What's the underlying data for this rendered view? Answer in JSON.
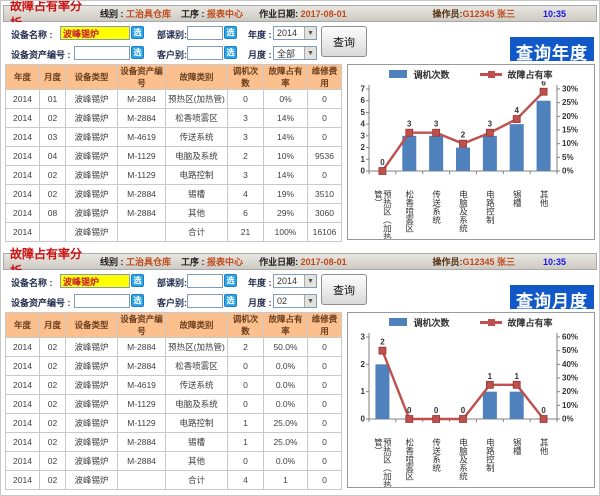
{
  "colors": {
    "bar": "#4f81bd",
    "line": "#c0504d",
    "table_header_bg": "#fbc08d",
    "mode_bg": "#1159c8",
    "pick_btn": "#2ba5e6",
    "highlight": "#ffff00",
    "title_red": "#cc1111",
    "time_blue": "#1515ee"
  },
  "panels": [
    {
      "titlebar": {
        "title": "故障占有率分析",
        "line_label": "线别 :",
        "line_value": "工治具仓库",
        "process_label": "工序 :",
        "process_value": "报表中心",
        "date_label": "作业日期:",
        "date_value": "2017-08-01",
        "operator_label": "操作员:",
        "operator_value": "G12345 张三",
        "time": "10:35"
      },
      "filters": {
        "device_label": "设备名称 :",
        "device_value": "波峰锡炉",
        "asset_label": "设备资产编号 :",
        "asset_value": "",
        "dept_label": "部课别:",
        "dept_value": "",
        "customer_label": "客户别:",
        "customer_value": "",
        "year_label": "年度 :",
        "year_value": "2014",
        "month_label": "月度 :",
        "month_value": "全部",
        "pick": "选",
        "query": "查询",
        "mode": "查询年度"
      },
      "table": {
        "columns": [
          "年度",
          "月度",
          "设备类型",
          "设备资产编号",
          "故障类别",
          "调机次数",
          "故障占有率",
          "维修费用"
        ],
        "rows": [
          [
            "2014",
            "01",
            "波峰锡炉",
            "M-2884",
            "预热区(加热管)",
            "0",
            "0%",
            "0"
          ],
          [
            "2014",
            "02",
            "波峰锡炉",
            "M-2884",
            "松香喷雾区",
            "3",
            "14%",
            "0"
          ],
          [
            "2014",
            "03",
            "波峰锡炉",
            "M-4619",
            "传送系统",
            "3",
            "14%",
            "0"
          ],
          [
            "2014",
            "04",
            "波峰锡炉",
            "M-1129",
            "电脑及系统",
            "2",
            "10%",
            "9536"
          ],
          [
            "2014",
            "02",
            "波峰锡炉",
            "M-1129",
            "电路控制",
            "3",
            "14%",
            "0"
          ],
          [
            "2014",
            "02",
            "波峰锡炉",
            "M-2884",
            "锡槽",
            "4",
            "19%",
            "3510"
          ],
          [
            "2014",
            "08",
            "波峰锡炉",
            "M-2884",
            "其他",
            "6",
            "29%",
            "3060"
          ],
          [
            "2014",
            "",
            "波峰锡炉",
            "",
            "合计",
            "21",
            "100%",
            "16106"
          ]
        ]
      },
      "chart_data": {
        "type": "bar",
        "categories": [
          "预热区（加热管）",
          "松香喷雾区",
          "传送系统",
          "电脑及系统",
          "电路控制",
          "锡槽",
          "其他"
        ],
        "series": [
          {
            "name": "调机次数",
            "type": "bar",
            "axis": "left",
            "color": "#4f81bd",
            "values": [
              0,
              3,
              3,
              2,
              3,
              4,
              6
            ]
          },
          {
            "name": "故障占有率",
            "type": "line",
            "axis": "right",
            "color": "#c0504d",
            "unit": "%",
            "values": [
              0,
              14,
              14,
              10,
              14,
              19,
              29
            ]
          }
        ],
        "point_labels": [
          "0",
          "3",
          "3",
          "2",
          "3",
          "4",
          "6"
        ],
        "left_axis": {
          "min": 0,
          "max": 7,
          "step": 1
        },
        "right_axis": {
          "min": 0,
          "max": 30,
          "step": 5,
          "unit": "%"
        },
        "legend_position": "top",
        "grid": false
      }
    },
    {
      "titlebar": {
        "title": "故障占有率分析",
        "line_label": "线别 :",
        "line_value": "工治具仓库",
        "process_label": "工序 :",
        "process_value": "报表中心",
        "date_label": "作业日期:",
        "date_value": "2017-08-01",
        "operator_label": "操作员:",
        "operator_value": "G12345 张三",
        "time": "10:35"
      },
      "filters": {
        "device_label": "设备名称 :",
        "device_value": "波峰锡炉",
        "asset_label": "设备资产编号 :",
        "asset_value": "",
        "dept_label": "部课别:",
        "dept_value": "",
        "customer_label": "客户别:",
        "customer_value": "",
        "year_label": "年度 :",
        "year_value": "2014",
        "month_label": "月度 :",
        "month_value": "02",
        "pick": "选",
        "query": "查询",
        "mode": "查询月度"
      },
      "table": {
        "columns": [
          "年度",
          "月度",
          "设备类型",
          "设备资产编号",
          "故障类别",
          "调机次数",
          "故障占有率",
          "维修费用"
        ],
        "rows": [
          [
            "2014",
            "02",
            "波峰锡炉",
            "M-2884",
            "预热区(加热管)",
            "2",
            "50.0%",
            "0"
          ],
          [
            "2014",
            "02",
            "波峰锡炉",
            "M-2884",
            "松香喷雾区",
            "0",
            "0.0%",
            "0"
          ],
          [
            "2014",
            "02",
            "波峰锡炉",
            "M-4619",
            "传送系统",
            "0",
            "0.0%",
            "0"
          ],
          [
            "2014",
            "02",
            "波峰锡炉",
            "M-1129",
            "电脑及系统",
            "0",
            "0.0%",
            "0"
          ],
          [
            "2014",
            "02",
            "波峰锡炉",
            "M-1129",
            "电路控制",
            "1",
            "25.0%",
            "0"
          ],
          [
            "2014",
            "02",
            "波峰锡炉",
            "M-2884",
            "锡槽",
            "1",
            "25.0%",
            "0"
          ],
          [
            "2014",
            "02",
            "波峰锡炉",
            "M-2884",
            "其他",
            "0",
            "0.0%",
            "0"
          ],
          [
            "2014",
            "02",
            "波峰锡炉",
            "",
            "合计",
            "4",
            "1",
            "0"
          ]
        ]
      },
      "chart_data": {
        "type": "bar",
        "categories": [
          "预热区（加热管）",
          "松香喷雾区",
          "传送系统",
          "电脑及系统",
          "电路控制",
          "锡槽",
          "其他"
        ],
        "series": [
          {
            "name": "调机次数",
            "type": "bar",
            "axis": "left",
            "color": "#4f81bd",
            "values": [
              2,
              0,
              0,
              0,
              1,
              1,
              0
            ]
          },
          {
            "name": "故障占有率",
            "type": "line",
            "axis": "right",
            "color": "#c0504d",
            "unit": "%",
            "values": [
              50,
              0,
              0,
              0,
              25,
              25,
              0
            ]
          }
        ],
        "point_labels": [
          "2",
          "0",
          "0",
          "0",
          "1",
          "1",
          "0"
        ],
        "left_axis": {
          "min": 0,
          "max": 3,
          "step": 1
        },
        "right_axis": {
          "min": 0,
          "max": 60,
          "step": 10,
          "unit": "%"
        },
        "legend_position": "top",
        "grid": false
      }
    }
  ]
}
